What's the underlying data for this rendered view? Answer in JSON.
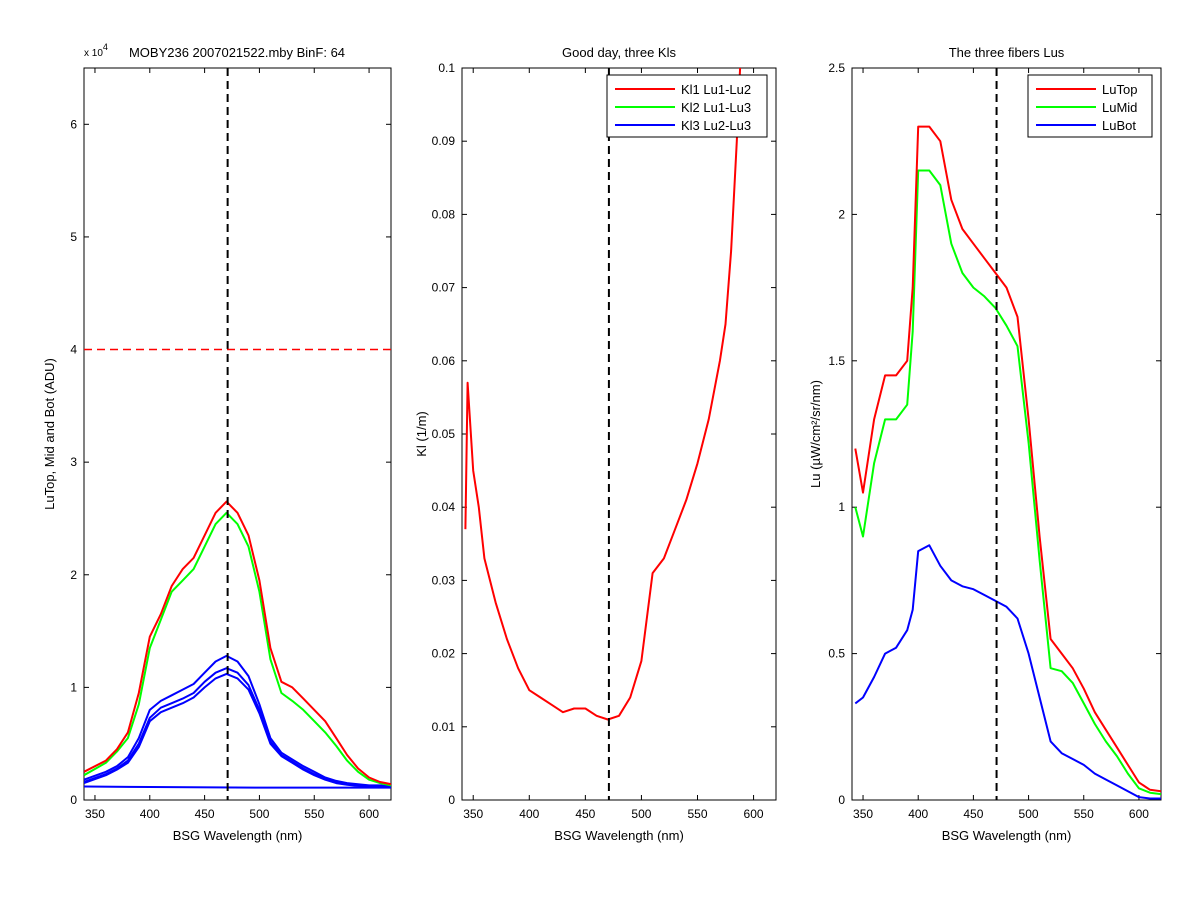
{
  "figure": {
    "background": "#ffffff"
  },
  "chart_data": [
    {
      "type": "line",
      "title": "MOBY236  2007021522.mby BinF: 64",
      "xlabel": "BSG Wavelength (nm)",
      "ylabel": "LuTop, Mid and Bot (ADU)",
      "xlim": [
        340,
        620
      ],
      "ylim": [
        0,
        65000
      ],
      "xticks": [
        350,
        400,
        450,
        500,
        550,
        600
      ],
      "yticks": [
        0,
        10000,
        20000,
        30000,
        40000,
        50000,
        60000
      ],
      "ytick_labels": [
        "0",
        "1",
        "2",
        "3",
        "4",
        "5",
        "6"
      ],
      "y_exponent": {
        "base": "x 10",
        "power": "4"
      },
      "grid": false,
      "reference_lines": [
        {
          "orientation": "vertical",
          "value": 471,
          "color": "#000000",
          "style": "dashed"
        },
        {
          "orientation": "horizontal",
          "value": 40000,
          "color": "#ff0000",
          "style": "dashed"
        }
      ],
      "series": [
        {
          "color": "#ff0000",
          "x": [
            340,
            360,
            370,
            380,
            390,
            400,
            410,
            420,
            430,
            440,
            450,
            460,
            470,
            480,
            490,
            500,
            510,
            520,
            530,
            540,
            550,
            560,
            570,
            580,
            590,
            600,
            610,
            620
          ],
          "values": [
            2500,
            3500,
            4500,
            6000,
            9500,
            14500,
            16500,
            19000,
            20500,
            21500,
            23500,
            25500,
            26500,
            25500,
            23500,
            19500,
            13500,
            10500,
            10000,
            9000,
            8000,
            7000,
            5500,
            4000,
            2800,
            2000,
            1600,
            1400
          ]
        },
        {
          "color": "#00ff00",
          "x": [
            340,
            360,
            370,
            380,
            390,
            400,
            410,
            420,
            430,
            440,
            450,
            460,
            470,
            480,
            490,
            500,
            510,
            520,
            530,
            540,
            550,
            560,
            570,
            580,
            590,
            600,
            610,
            620
          ],
          "values": [
            2200,
            3300,
            4300,
            5500,
            8500,
            13500,
            16000,
            18500,
            19500,
            20500,
            22500,
            24500,
            25500,
            24500,
            22500,
            18500,
            12500,
            9500,
            8800,
            8000,
            7000,
            6000,
            4800,
            3500,
            2500,
            1800,
            1500,
            1300
          ]
        },
        {
          "color": "#0000ff",
          "x": [
            340,
            360,
            370,
            380,
            390,
            400,
            410,
            420,
            430,
            440,
            450,
            460,
            470,
            480,
            490,
            500,
            510,
            520,
            530,
            540,
            550,
            560,
            570,
            580,
            590,
            600,
            610,
            620
          ],
          "values": [
            1800,
            2500,
            3000,
            3800,
            5500,
            8000,
            8800,
            9300,
            9800,
            10300,
            11300,
            12300,
            12800,
            12300,
            11000,
            8500,
            5500,
            4200,
            3600,
            3000,
            2500,
            2000,
            1700,
            1500,
            1400,
            1300,
            1300,
            1200
          ]
        },
        {
          "color": "#0000ff",
          "x": [
            340,
            360,
            370,
            380,
            390,
            400,
            410,
            420,
            430,
            440,
            450,
            460,
            470,
            480,
            490,
            500,
            510,
            520,
            530,
            540,
            550,
            560,
            570,
            580,
            590,
            600,
            610,
            620
          ],
          "values": [
            1600,
            2300,
            2800,
            3500,
            5000,
            7300,
            8200,
            8600,
            9000,
            9500,
            10500,
            11300,
            11700,
            11300,
            10200,
            8000,
            5200,
            4000,
            3400,
            2800,
            2300,
            1900,
            1600,
            1400,
            1300,
            1250,
            1200,
            1200
          ]
        },
        {
          "color": "#0000ff",
          "x": [
            340,
            360,
            370,
            380,
            390,
            400,
            410,
            420,
            430,
            440,
            450,
            460,
            470,
            480,
            490,
            500,
            510,
            520,
            530,
            540,
            550,
            560,
            570,
            580,
            590,
            600,
            610,
            620
          ],
          "values": [
            1500,
            2200,
            2700,
            3300,
            4700,
            7000,
            7800,
            8200,
            8600,
            9100,
            10000,
            10800,
            11200,
            10800,
            9800,
            7700,
            5000,
            3900,
            3300,
            2700,
            2200,
            1800,
            1500,
            1350,
            1250,
            1200,
            1200,
            1150
          ]
        },
        {
          "color": "#0000ff",
          "x": [
            340,
            400,
            500,
            620
          ],
          "values": [
            1200,
            1150,
            1100,
            1100
          ]
        }
      ]
    },
    {
      "type": "line",
      "title": "Good day, three Kls",
      "xlabel": "BSG Wavelength (nm)",
      "ylabel": "Kl (1/m)",
      "xlim": [
        340,
        620
      ],
      "ylim": [
        0,
        0.1
      ],
      "xticks": [
        350,
        400,
        450,
        500,
        550,
        600
      ],
      "yticks": [
        0,
        0.01,
        0.02,
        0.03,
        0.04,
        0.05,
        0.06,
        0.07,
        0.08,
        0.09,
        0.1
      ],
      "ytick_labels": [
        "0",
        "0.01",
        "0.02",
        "0.03",
        "0.04",
        "0.05",
        "0.06",
        "0.07",
        "0.08",
        "0.09",
        "0.1"
      ],
      "grid": false,
      "legend_position": "top-right",
      "reference_lines": [
        {
          "orientation": "vertical",
          "value": 471,
          "color": "#000000",
          "style": "dashed"
        }
      ],
      "series": [
        {
          "name": "Kl1 Lu1-Lu2",
          "color": "#ff0000",
          "x": [
            343,
            345,
            350,
            355,
            360,
            365,
            370,
            380,
            390,
            400,
            410,
            420,
            430,
            440,
            450,
            460,
            470,
            480,
            490,
            500,
            505,
            510,
            520,
            530,
            540,
            550,
            560,
            570,
            575,
            580,
            585,
            588
          ],
          "values": [
            0.037,
            0.057,
            0.045,
            0.04,
            0.033,
            0.03,
            0.027,
            0.022,
            0.018,
            0.015,
            0.014,
            0.013,
            0.012,
            0.0125,
            0.0125,
            0.0115,
            0.011,
            0.0115,
            0.014,
            0.019,
            0.025,
            0.031,
            0.033,
            0.037,
            0.041,
            0.046,
            0.052,
            0.06,
            0.065,
            0.075,
            0.09,
            0.1
          ]
        },
        {
          "name": "Kl2 Lu1-Lu3",
          "color": "#00ff00",
          "x": [],
          "values": []
        },
        {
          "name": "Kl3 Lu2-Lu3",
          "color": "#0000ff",
          "x": [],
          "values": []
        }
      ]
    },
    {
      "type": "line",
      "title": "The three fibers Lus",
      "xlabel": "BSG Wavelength (nm)",
      "ylabel": "Lu (µW/cm²/sr/nm)",
      "xlim": [
        340,
        620
      ],
      "ylim": [
        0,
        2.5
      ],
      "xticks": [
        350,
        400,
        450,
        500,
        550,
        600
      ],
      "yticks": [
        0,
        0.5,
        1,
        1.5,
        2,
        2.5
      ],
      "ytick_labels": [
        "0",
        "0.5",
        "1",
        "1.5",
        "2",
        "2.5"
      ],
      "grid": false,
      "legend_position": "top-right",
      "reference_lines": [
        {
          "orientation": "vertical",
          "value": 471,
          "color": "#000000",
          "style": "dashed"
        }
      ],
      "series": [
        {
          "name": "LuTop",
          "color": "#ff0000",
          "x": [
            343,
            350,
            360,
            370,
            380,
            390,
            395,
            400,
            410,
            420,
            430,
            440,
            450,
            460,
            470,
            480,
            490,
            500,
            510,
            520,
            530,
            540,
            550,
            560,
            570,
            580,
            590,
            600,
            610,
            620
          ],
          "values": [
            1.2,
            1.05,
            1.3,
            1.45,
            1.45,
            1.5,
            1.75,
            2.3,
            2.3,
            2.25,
            2.05,
            1.95,
            1.9,
            1.85,
            1.8,
            1.75,
            1.65,
            1.3,
            0.9,
            0.55,
            0.5,
            0.45,
            0.38,
            0.3,
            0.24,
            0.18,
            0.12,
            0.06,
            0.035,
            0.03
          ]
        },
        {
          "name": "LuMid",
          "color": "#00ff00",
          "x": [
            343,
            350,
            360,
            370,
            380,
            390,
            395,
            400,
            410,
            420,
            430,
            440,
            450,
            460,
            470,
            480,
            490,
            500,
            510,
            520,
            530,
            540,
            550,
            560,
            570,
            580,
            590,
            600,
            610,
            620
          ],
          "values": [
            1.0,
            0.9,
            1.15,
            1.3,
            1.3,
            1.35,
            1.6,
            2.15,
            2.15,
            2.1,
            1.9,
            1.8,
            1.75,
            1.72,
            1.68,
            1.62,
            1.55,
            1.22,
            0.82,
            0.45,
            0.44,
            0.4,
            0.33,
            0.26,
            0.2,
            0.15,
            0.09,
            0.04,
            0.025,
            0.02
          ]
        },
        {
          "name": "LuBot",
          "color": "#0000ff",
          "x": [
            343,
            350,
            360,
            370,
            380,
            390,
            395,
            400,
            410,
            420,
            430,
            440,
            450,
            460,
            470,
            480,
            490,
            500,
            510,
            520,
            530,
            540,
            550,
            560,
            570,
            580,
            590,
            600,
            610,
            620
          ],
          "values": [
            0.33,
            0.35,
            0.42,
            0.5,
            0.52,
            0.58,
            0.65,
            0.85,
            0.87,
            0.8,
            0.75,
            0.73,
            0.72,
            0.7,
            0.68,
            0.66,
            0.62,
            0.5,
            0.35,
            0.2,
            0.16,
            0.14,
            0.12,
            0.09,
            0.07,
            0.05,
            0.03,
            0.01,
            0.005,
            0.005
          ]
        }
      ]
    }
  ]
}
